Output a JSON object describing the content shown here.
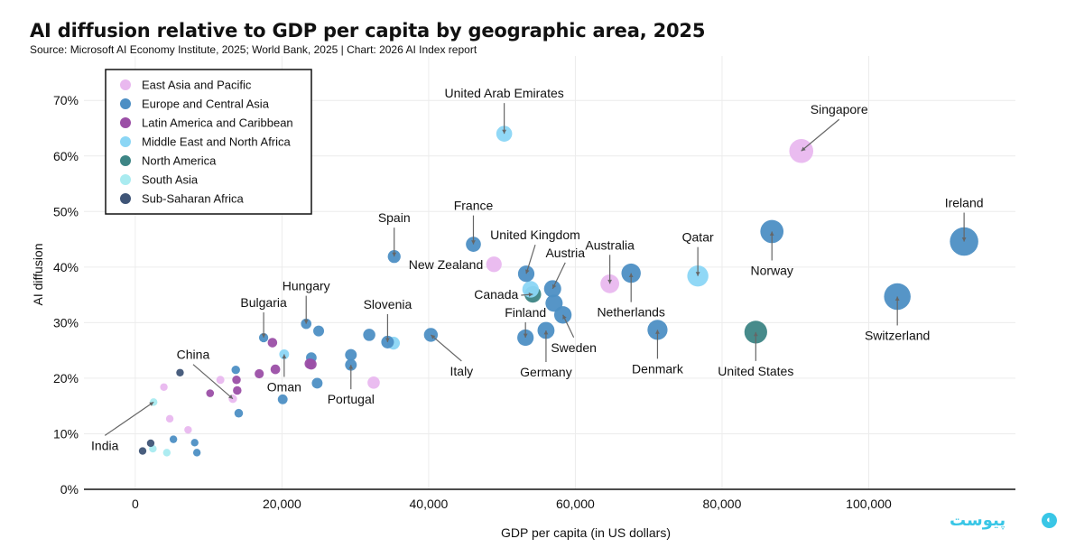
{
  "title": "AI diffusion relative to GDP per capita by geographic area, 2025",
  "subtitle": "Source: Microsoft AI Economy Institute, 2025; World Bank, 2025 | Chart: 2026 AI Index report",
  "watermark": "پیوست",
  "colors": {
    "East Asia and Pacific": "#e9b8ef",
    "Europe and Central Asia": "#4d8fc4",
    "Latin America and Caribbean": "#9b4fa6",
    "Middle East and North Africa": "#8bd6f5",
    "North America": "#3d8585",
    "South Asia": "#a9ebf0",
    "Sub-Saharan Africa": "#3f5577"
  },
  "chart_data": {
    "type": "scatter",
    "title": "AI diffusion relative to GDP per capita by geographic area, 2025",
    "xlabel": "GDP per capita (in US dollars)",
    "ylabel": "AI diffusion",
    "xlim": [
      -7000,
      120000
    ],
    "ylim": [
      0,
      78
    ],
    "xticks": [
      0,
      20000,
      40000,
      60000,
      80000,
      100000
    ],
    "xtick_labels": [
      "0",
      "20,000",
      "40,000",
      "60,000",
      "80,000",
      "100,000"
    ],
    "yticks": [
      0,
      10,
      20,
      30,
      40,
      50,
      60,
      70
    ],
    "ytick_labels": [
      "0%",
      "10%",
      "20%",
      "30%",
      "40%",
      "50%",
      "60%",
      "70%"
    ],
    "grid": true,
    "legend_position": "top-left",
    "series": [
      {
        "name": "East Asia and Pacific",
        "points": [
          {
            "x": 90800,
            "y": 60.9,
            "label": "Singapore"
          },
          {
            "x": 64700,
            "y": 37.0,
            "label": "Australia"
          },
          {
            "x": 48900,
            "y": 40.5,
            "label": "New Zealand"
          },
          {
            "x": 13300,
            "y": 16.3,
            "label": "China"
          },
          {
            "x": 32500,
            "y": 19.2
          },
          {
            "x": 11600,
            "y": 19.7
          },
          {
            "x": 3900,
            "y": 18.4
          },
          {
            "x": 4700,
            "y": 12.7
          },
          {
            "x": 7200,
            "y": 10.7
          }
        ]
      },
      {
        "name": "Europe and Central Asia",
        "points": [
          {
            "x": 113000,
            "y": 44.6,
            "label": "Ireland"
          },
          {
            "x": 103900,
            "y": 34.7,
            "label": "Switzerland"
          },
          {
            "x": 86800,
            "y": 46.4,
            "label": "Norway"
          },
          {
            "x": 71200,
            "y": 28.7,
            "label": "Denmark"
          },
          {
            "x": 67600,
            "y": 38.9,
            "label": "Netherlands"
          },
          {
            "x": 46100,
            "y": 44.1,
            "label": "France"
          },
          {
            "x": 35300,
            "y": 41.9,
            "label": "Spain"
          },
          {
            "x": 53300,
            "y": 38.8,
            "label": "United Kingdom"
          },
          {
            "x": 56900,
            "y": 36.1,
            "label": "Austria"
          },
          {
            "x": 57100,
            "y": 33.5
          },
          {
            "x": 58300,
            "y": 31.4,
            "label": "Sweden"
          },
          {
            "x": 56000,
            "y": 28.6,
            "label": "Germany"
          },
          {
            "x": 53200,
            "y": 27.3,
            "label": "Finland"
          },
          {
            "x": 40300,
            "y": 27.8,
            "label": "Italy"
          },
          {
            "x": 34400,
            "y": 26.5,
            "label": "Slovenia"
          },
          {
            "x": 31900,
            "y": 27.8
          },
          {
            "x": 23300,
            "y": 29.8,
            "label": "Hungary"
          },
          {
            "x": 25000,
            "y": 28.5
          },
          {
            "x": 17500,
            "y": 27.3,
            "label": "Bulgaria"
          },
          {
            "x": 29400,
            "y": 24.2
          },
          {
            "x": 29400,
            "y": 22.4,
            "label": "Portugal"
          },
          {
            "x": 24000,
            "y": 23.7
          },
          {
            "x": 24800,
            "y": 19.1
          },
          {
            "x": 13700,
            "y": 21.5
          },
          {
            "x": 20100,
            "y": 16.2
          },
          {
            "x": 14100,
            "y": 13.7
          },
          {
            "x": 5200,
            "y": 9.0
          },
          {
            "x": 8100,
            "y": 8.4
          },
          {
            "x": 8400,
            "y": 6.6
          }
        ]
      },
      {
        "name": "Latin America and Caribbean",
        "points": [
          {
            "x": 18700,
            "y": 26.4
          },
          {
            "x": 19100,
            "y": 21.6
          },
          {
            "x": 16900,
            "y": 20.8
          },
          {
            "x": 24000,
            "y": 22.5
          },
          {
            "x": 23800,
            "y": 22.6
          },
          {
            "x": 13800,
            "y": 19.7
          },
          {
            "x": 13900,
            "y": 17.8
          },
          {
            "x": 10200,
            "y": 17.3
          }
        ]
      },
      {
        "name": "Middle East and North Africa",
        "points": [
          {
            "x": 50300,
            "y": 64.0,
            "label": "United Arab Emirates"
          },
          {
            "x": 76700,
            "y": 38.4,
            "label": "Qatar"
          },
          {
            "x": 53900,
            "y": 36.0
          },
          {
            "x": 35200,
            "y": 26.3
          },
          {
            "x": 20300,
            "y": 24.3,
            "label": "Oman"
          }
        ]
      },
      {
        "name": "North America",
        "points": [
          {
            "x": 84600,
            "y": 28.3,
            "label": "United States"
          },
          {
            "x": 54200,
            "y": 35.1,
            "label": "Canada"
          }
        ]
      },
      {
        "name": "South Asia",
        "points": [
          {
            "x": 2500,
            "y": 15.7,
            "label": "India"
          },
          {
            "x": 2400,
            "y": 7.3
          },
          {
            "x": 4300,
            "y": 6.6
          }
        ]
      },
      {
        "name": "Sub-Saharan Africa",
        "points": [
          {
            "x": 6100,
            "y": 21.0
          },
          {
            "x": 2100,
            "y": 8.3
          },
          {
            "x": 1000,
            "y": 6.9
          }
        ]
      }
    ]
  }
}
